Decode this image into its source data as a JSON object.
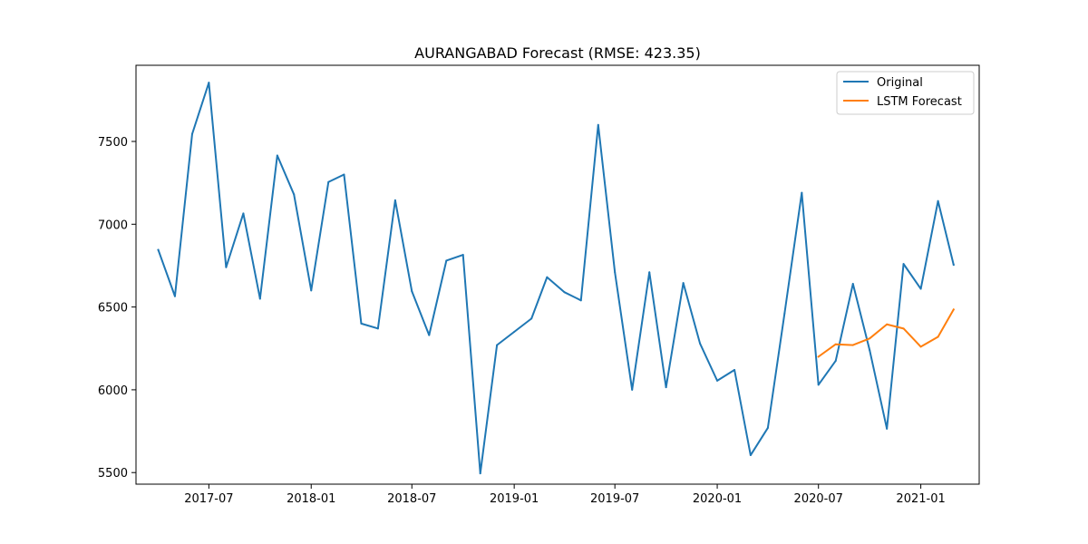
{
  "chart_data": {
    "type": "line",
    "title": "AURANGABAD Forecast (RMSE: 423.35)",
    "xlabel": "",
    "ylabel": "",
    "x_ticks": [
      "2017-07",
      "2018-01",
      "2018-07",
      "2019-01",
      "2019-07",
      "2020-01",
      "2020-07",
      "2021-01"
    ],
    "y_ticks": [
      5500,
      6000,
      6500,
      7000,
      7500
    ],
    "xlim": [
      "2017-02-20",
      "2021-04-16"
    ],
    "ylim": [
      5430,
      7960
    ],
    "grid": false,
    "legend_position": "top-right",
    "series": [
      {
        "name": "Original",
        "color": "#1f77b4",
        "x": [
          "2017-04",
          "2017-05",
          "2017-06",
          "2017-07",
          "2017-08",
          "2017-09",
          "2017-10",
          "2017-11",
          "2017-12",
          "2018-01",
          "2018-02",
          "2018-03",
          "2018-04",
          "2018-05",
          "2018-06",
          "2018-07",
          "2018-08",
          "2018-09",
          "2018-10",
          "2018-11",
          "2018-12",
          "2019-01",
          "2019-02",
          "2019-03",
          "2019-04",
          "2019-05",
          "2019-06",
          "2019-07",
          "2019-08",
          "2019-09",
          "2019-10",
          "2019-11",
          "2019-12",
          "2020-01",
          "2020-02",
          "2020-03",
          "2020-04",
          "2020-05",
          "2020-06",
          "2020-07",
          "2020-08",
          "2020-09",
          "2020-10",
          "2020-11",
          "2020-12",
          "2021-01",
          "2021-02",
          "2021-03"
        ],
        "values": [
          6845,
          6565,
          7545,
          7855,
          6740,
          7065,
          6550,
          7415,
          7180,
          6600,
          7255,
          7300,
          6400,
          6370,
          7145,
          6595,
          6330,
          6780,
          6815,
          5495,
          6270,
          6350,
          6430,
          6680,
          6590,
          6540,
          7600,
          6710,
          6000,
          6710,
          6015,
          6645,
          6280,
          6055,
          6120,
          5605,
          5770,
          6460,
          7190,
          6030,
          6175,
          6640,
          6240,
          5765,
          6760,
          6610,
          7140,
          6755
        ]
      },
      {
        "name": "LSTM Forecast",
        "color": "#ff7f0e",
        "x": [
          "2020-07",
          "2020-08",
          "2020-09",
          "2020-10",
          "2020-11",
          "2020-12",
          "2021-01",
          "2021-02",
          "2021-03"
        ],
        "values": [
          6200,
          6275,
          6270,
          6310,
          6395,
          6370,
          6260,
          6320,
          6485
        ]
      }
    ]
  }
}
